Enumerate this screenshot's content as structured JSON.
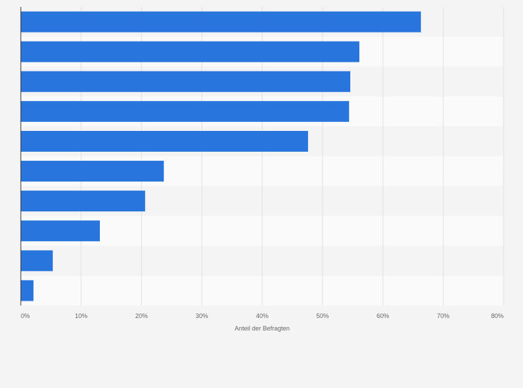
{
  "chart_data": {
    "type": "bar",
    "orientation": "horizontal",
    "categories": [
      "",
      "",
      "",
      "",
      "",
      "",
      "",
      "",
      "",
      ""
    ],
    "values": [
      66.3,
      56.1,
      54.6,
      54.4,
      47.6,
      23.7,
      20.6,
      13.1,
      5.3,
      2.1
    ],
    "xlabel": "Anteil der Befragten",
    "xlim": [
      0,
      80
    ],
    "x_ticks": [
      0,
      10,
      20,
      30,
      40,
      50,
      60,
      70,
      80
    ],
    "x_tick_labels": [
      "0%",
      "10%",
      "20%",
      "30%",
      "40%",
      "50%",
      "60%",
      "70%",
      "80%"
    ],
    "grid": true,
    "colors": {
      "bar": "#2876dd",
      "background": "#f4f4f4",
      "band_light": "#fafafa",
      "band_dark": "#f4f4f4",
      "grid": "#e0e0e0",
      "axis": "#333333"
    }
  }
}
